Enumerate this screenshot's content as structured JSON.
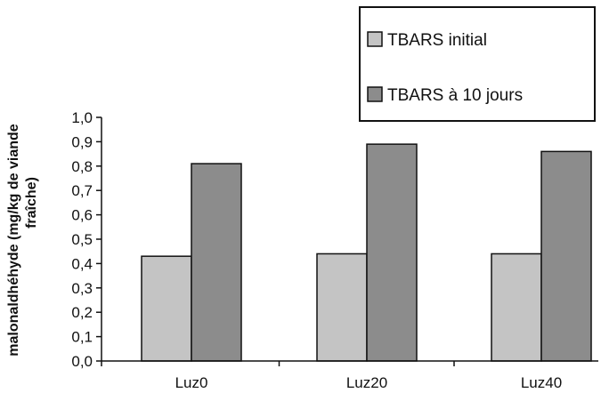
{
  "chart_data": {
    "type": "bar",
    "categories": [
      "Luz0",
      "Luz20",
      "Luz40"
    ],
    "series": [
      {
        "name": "TBARS initial",
        "values": [
          0.43,
          0.44,
          0.44
        ],
        "color": "#c4c4c4"
      },
      {
        "name": "TBARS à 10 jours",
        "values": [
          0.81,
          0.89,
          0.86
        ],
        "color": "#8c8c8c"
      }
    ],
    "ylabel_line1": "malonaldhéhyde (mg/kg de viande",
    "ylabel_line2": "fraîche)",
    "ylim": [
      0,
      1.0
    ],
    "yticks": [
      "0,0",
      "0,1",
      "0,2",
      "0,3",
      "0,4",
      "0,5",
      "0,6",
      "0,7",
      "0,8",
      "0,9",
      "1,0"
    ],
    "grid": false,
    "legend_position": "top-right"
  }
}
